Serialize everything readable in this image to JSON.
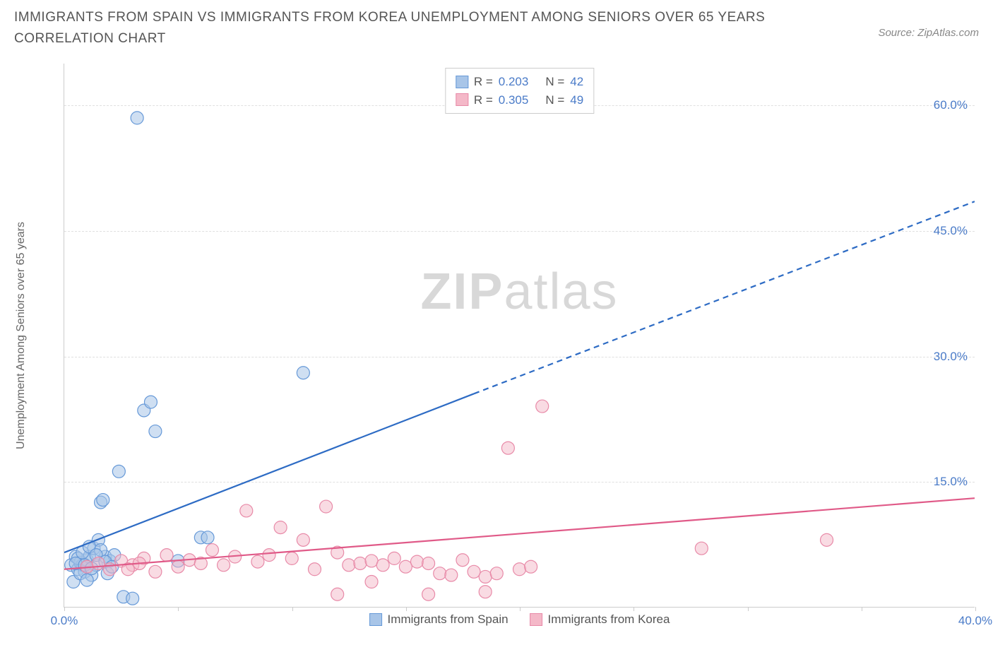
{
  "title": "IMMIGRANTS FROM SPAIN VS IMMIGRANTS FROM KOREA UNEMPLOYMENT AMONG SENIORS OVER 65 YEARS CORRELATION CHART",
  "source_label": "Source: ZipAtlas.com",
  "y_axis_label": "Unemployment Among Seniors over 65 years",
  "watermark": {
    "bold": "ZIP",
    "light": "atlas"
  },
  "chart": {
    "type": "scatter",
    "background_color": "#ffffff",
    "grid_color": "#e0e0e0",
    "axis_color": "#cccccc",
    "x_range": [
      0,
      40
    ],
    "y_range": [
      0,
      65
    ],
    "y_ticks": [
      15,
      30,
      45,
      60
    ],
    "y_tick_labels": [
      "15.0%",
      "30.0%",
      "45.0%",
      "60.0%"
    ],
    "x_ticks": [
      0,
      5,
      10,
      15,
      20,
      25,
      30,
      35,
      40
    ],
    "x_tick_labels": {
      "0": "0.0%",
      "40": "40.0%"
    },
    "x_2nd_axis_labels": {
      "0": "0.0%",
      "40": "40.0%"
    },
    "tick_label_color": "#4a7bc8",
    "marker_radius": 9,
    "marker_stroke_width": 1.2,
    "series": [
      {
        "name": "Immigrants from Spain",
        "color_fill": "#a8c5e8",
        "color_stroke": "#6699d8",
        "fill_opacity": 0.55,
        "R": "0.203",
        "N": "42",
        "trend": {
          "x1": 0,
          "y1": 6.5,
          "x2_solid": 18,
          "y2_solid": 25.5,
          "x2_dash": 40,
          "y2_dash": 48.5,
          "color": "#2d6bc4",
          "width": 2.2
        },
        "points": [
          [
            0.3,
            5
          ],
          [
            0.4,
            3
          ],
          [
            0.5,
            6
          ],
          [
            0.6,
            4.5
          ],
          [
            0.7,
            5.3
          ],
          [
            0.8,
            5
          ],
          [
            0.9,
            4.2
          ],
          [
            1.0,
            5.6
          ],
          [
            1.1,
            6
          ],
          [
            1.2,
            3.8
          ],
          [
            1.3,
            7
          ],
          [
            1.5,
            8
          ],
          [
            1.6,
            12.5
          ],
          [
            1.7,
            12.8
          ],
          [
            1.8,
            6
          ],
          [
            1.9,
            4
          ],
          [
            2.0,
            5.5
          ],
          [
            2.2,
            6.2
          ],
          [
            2.4,
            16.2
          ],
          [
            2.6,
            1.2
          ],
          [
            3.0,
            1.0
          ],
          [
            3.5,
            23.5
          ],
          [
            3.8,
            24.5
          ],
          [
            4.0,
            21.0
          ],
          [
            5.0,
            5.5
          ],
          [
            6.0,
            8.3
          ],
          [
            6.3,
            8.3
          ],
          [
            3.2,
            58.5
          ],
          [
            10.5,
            28.0
          ],
          [
            0.6,
            5.8
          ],
          [
            0.7,
            4.0
          ],
          [
            0.8,
            6.5
          ],
          [
            1.0,
            3.2
          ],
          [
            1.1,
            7.2
          ],
          [
            1.4,
            5.0
          ],
          [
            1.6,
            6.8
          ],
          [
            0.5,
            5.2
          ],
          [
            0.9,
            5.0
          ],
          [
            1.2,
            4.6
          ],
          [
            1.4,
            6.2
          ],
          [
            1.8,
            5.4
          ],
          [
            2.1,
            4.8
          ]
        ]
      },
      {
        "name": "Immigrants from Korea",
        "color_fill": "#f4b8c8",
        "color_stroke": "#e88aa8",
        "fill_opacity": 0.5,
        "R": "0.305",
        "N": "49",
        "trend": {
          "x1": 0,
          "y1": 4.5,
          "x2_solid": 40,
          "y2_solid": 13.0,
          "x2_dash": 40,
          "y2_dash": 13.0,
          "color": "#e05a88",
          "width": 2.2
        },
        "points": [
          [
            1.0,
            4.8
          ],
          [
            1.5,
            5.2
          ],
          [
            2.0,
            4.5
          ],
          [
            2.5,
            5.5
          ],
          [
            3.0,
            5.0
          ],
          [
            3.5,
            5.8
          ],
          [
            4.0,
            4.2
          ],
          [
            4.5,
            6.2
          ],
          [
            5.0,
            4.8
          ],
          [
            5.5,
            5.6
          ],
          [
            6.0,
            5.2
          ],
          [
            6.5,
            6.8
          ],
          [
            7.0,
            5.0
          ],
          [
            7.5,
            6.0
          ],
          [
            8.0,
            11.5
          ],
          [
            8.5,
            5.4
          ],
          [
            9.0,
            6.2
          ],
          [
            9.5,
            9.5
          ],
          [
            10.0,
            5.8
          ],
          [
            10.5,
            8.0
          ],
          [
            11.0,
            4.5
          ],
          [
            11.5,
            12.0
          ],
          [
            12.0,
            6.5
          ],
          [
            12.5,
            5.0
          ],
          [
            13.0,
            5.2
          ],
          [
            13.5,
            5.5
          ],
          [
            14.0,
            5.0
          ],
          [
            14.5,
            5.8
          ],
          [
            15.0,
            4.8
          ],
          [
            15.5,
            5.4
          ],
          [
            16.0,
            5.2
          ],
          [
            16.5,
            4.0
          ],
          [
            17.0,
            3.8
          ],
          [
            17.5,
            5.6
          ],
          [
            18.0,
            4.2
          ],
          [
            18.5,
            3.6
          ],
          [
            19.0,
            4.0
          ],
          [
            19.5,
            19.0
          ],
          [
            20.0,
            4.5
          ],
          [
            20.5,
            4.8
          ],
          [
            21.0,
            24.0
          ],
          [
            12.0,
            1.5
          ],
          [
            13.5,
            3.0
          ],
          [
            16.0,
            1.5
          ],
          [
            18.5,
            1.8
          ],
          [
            28.0,
            7.0
          ],
          [
            33.5,
            8.0
          ],
          [
            2.8,
            4.5
          ],
          [
            3.3,
            5.2
          ]
        ]
      }
    ],
    "legend_top_labels": {
      "R": "R =",
      "N": "N ="
    },
    "legend_bottom": [
      {
        "label": "Immigrants from Spain",
        "fill": "#a8c5e8",
        "stroke": "#6699d8"
      },
      {
        "label": "Immigrants from Korea",
        "fill": "#f4b8c8",
        "stroke": "#e88aa8"
      }
    ]
  }
}
